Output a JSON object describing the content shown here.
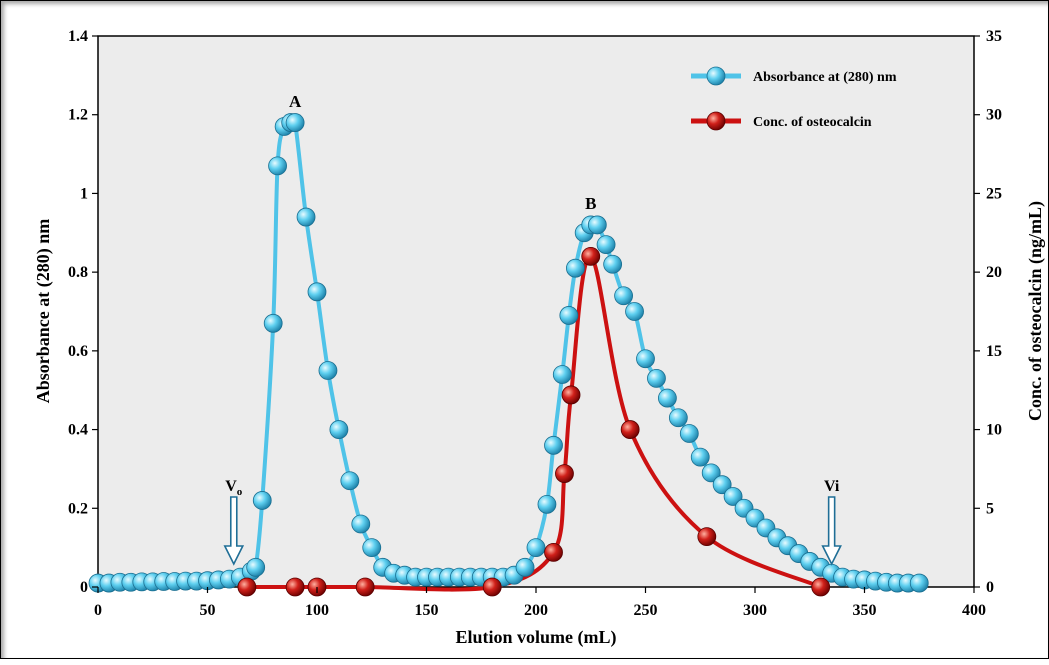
{
  "chart_data": {
    "type": "line",
    "xlabel": "Elution volume (mL)",
    "ylabel_left": "Absorbance at (280) nm",
    "ylabel_right": "Conc. of osteocalcin (ng/mL)",
    "xlim": [
      0,
      400
    ],
    "ylim_left": [
      0,
      1.4
    ],
    "ylim_right": [
      0,
      35
    ],
    "x_ticks": [
      "0",
      "50",
      "100",
      "150",
      "200",
      "250",
      "300",
      "350",
      "400"
    ],
    "y_left_ticks": [
      "0",
      "0.2",
      "0.4",
      "0.6",
      "0.8",
      "1",
      "1.2",
      "1.4"
    ],
    "y_right_ticks": [
      "0",
      "5",
      "10",
      "15",
      "20",
      "25",
      "30",
      "35"
    ],
    "grid": false,
    "legend_position": "top-right",
    "colors": {
      "absorbance": "#4fc3e8",
      "osteocalcin": "#cc1111",
      "marker_arrow": "#1f6e96",
      "plot_bg": "#ececec"
    },
    "series": [
      {
        "name": "Absorbance at (280) nm",
        "axis": "left",
        "x": [
          0,
          5,
          10,
          15,
          20,
          25,
          30,
          35,
          40,
          45,
          50,
          55,
          60,
          65,
          70,
          72,
          75,
          80,
          82,
          85,
          88,
          90,
          95,
          100,
          105,
          110,
          115,
          120,
          125,
          130,
          135,
          140,
          145,
          150,
          155,
          160,
          165,
          170,
          175,
          180,
          185,
          190,
          195,
          200,
          205,
          208,
          212,
          215,
          218,
          222,
          225,
          228,
          232,
          235,
          240,
          245,
          250,
          255,
          260,
          265,
          270,
          275,
          280,
          285,
          290,
          295,
          300,
          305,
          310,
          315,
          320,
          325,
          330,
          335,
          340,
          345,
          350,
          355,
          360,
          365,
          370,
          375
        ],
        "y": [
          0.01,
          0.01,
          0.012,
          0.012,
          0.013,
          0.013,
          0.014,
          0.014,
          0.015,
          0.015,
          0.016,
          0.018,
          0.02,
          0.025,
          0.04,
          0.05,
          0.22,
          0.67,
          1.07,
          1.17,
          1.18,
          1.18,
          0.94,
          0.75,
          0.55,
          0.4,
          0.27,
          0.16,
          0.1,
          0.05,
          0.035,
          0.03,
          0.025,
          0.025,
          0.025,
          0.025,
          0.025,
          0.025,
          0.025,
          0.025,
          0.025,
          0.03,
          0.05,
          0.1,
          0.21,
          0.36,
          0.54,
          0.69,
          0.81,
          0.9,
          0.92,
          0.92,
          0.87,
          0.82,
          0.74,
          0.7,
          0.58,
          0.53,
          0.48,
          0.43,
          0.39,
          0.33,
          0.29,
          0.26,
          0.23,
          0.2,
          0.175,
          0.15,
          0.125,
          0.105,
          0.085,
          0.065,
          0.05,
          0.035,
          0.025,
          0.02,
          0.018,
          0.015,
          0.012,
          0.01,
          0.01,
          0.01
        ]
      },
      {
        "name": "Conc. of osteocalcin",
        "axis": "right",
        "x": [
          68,
          90,
          100,
          122,
          180,
          208,
          213,
          216,
          225,
          243,
          278,
          330
        ],
        "y": [
          0,
          0,
          0,
          0,
          0,
          2.2,
          7.2,
          12.2,
          21.0,
          10.0,
          3.2,
          0
        ]
      }
    ],
    "annotations": [
      {
        "text": "A",
        "x": 90,
        "y": 1.22
      },
      {
        "text": "B",
        "x": 225,
        "y": 0.96
      }
    ],
    "markers": [
      {
        "label": "V",
        "subscript": "o",
        "x": 62
      },
      {
        "label": "Vi",
        "x": 335
      }
    ]
  }
}
